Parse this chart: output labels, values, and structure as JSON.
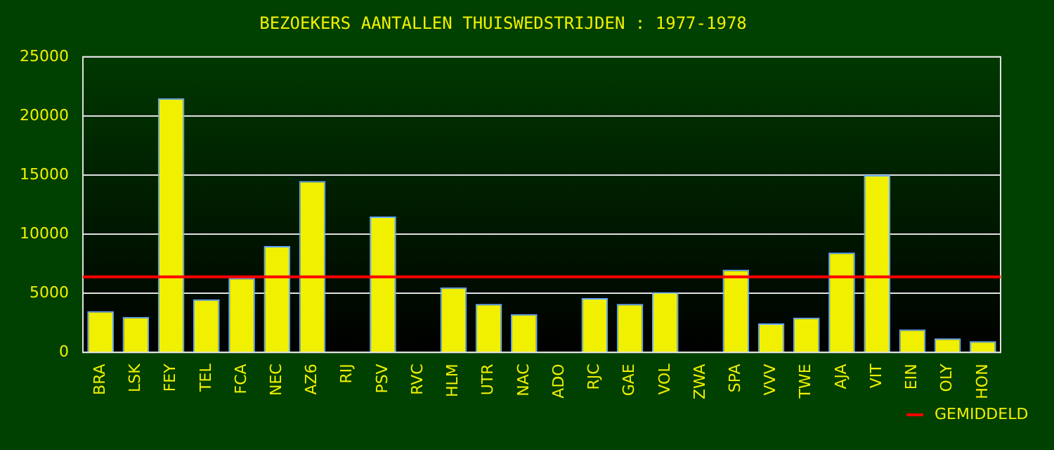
{
  "chart_data": {
    "type": "bar",
    "title": "BEZOEKERS AANTALLEN THUISWEDSTRIJDEN : 1977-1978",
    "categories": [
      "BRA",
      "LSK",
      "FEY",
      "TEL",
      "FCA",
      "NEC",
      "AZ6",
      "RIJ",
      "PSV",
      "RVC",
      "HLM",
      "UTR",
      "NAC",
      "ADO",
      "RJC",
      "GAE",
      "VOL",
      "ZWA",
      "SPA",
      "VVV",
      "TWE",
      "AJA",
      "VIT",
      "EIN",
      "OLY",
      "HON"
    ],
    "values": [
      3500,
      3000,
      21500,
      4500,
      6300,
      9000,
      14500,
      null,
      11500,
      null,
      5500,
      4100,
      3250,
      null,
      4600,
      4100,
      5100,
      null,
      7000,
      2450,
      2950,
      8450,
      15000,
      1950,
      1200,
      950
    ],
    "color": "#f0f000",
    "ylim": [
      0,
      25000
    ],
    "yticks": [
      0,
      5000,
      10000,
      15000,
      20000,
      25000
    ],
    "grid": "y",
    "ref_lines": [
      {
        "axis": "y",
        "value": 6400,
        "label": "GEMIDDELD",
        "color": "#ff0000"
      }
    ],
    "legend": "bottom right"
  }
}
